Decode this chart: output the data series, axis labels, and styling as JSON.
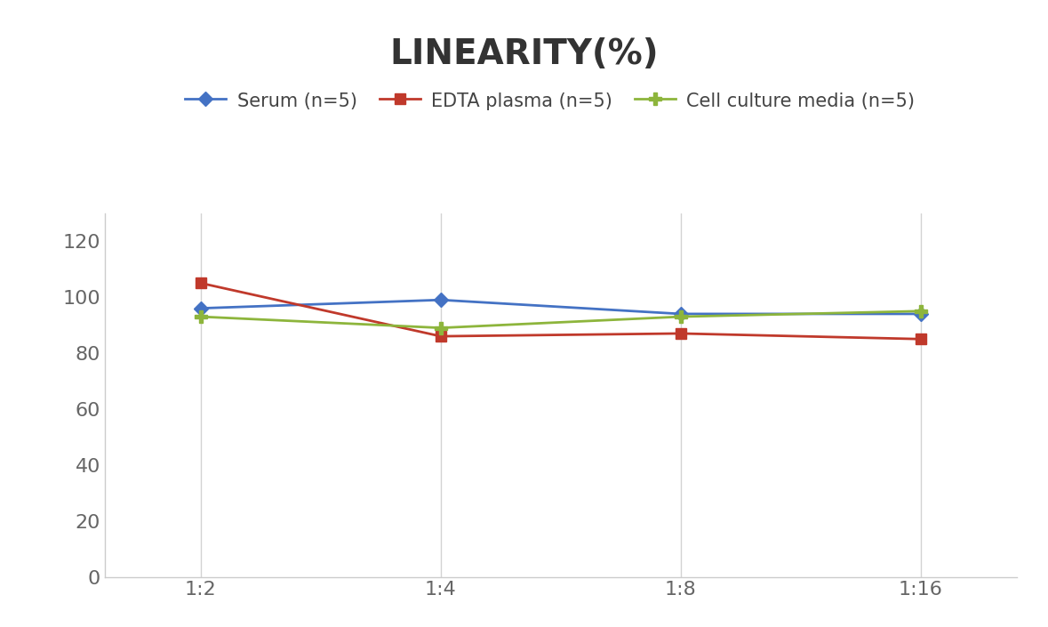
{
  "title": "LINEARITY(%)",
  "title_fontsize": 28,
  "title_fontweight": "bold",
  "x_labels": [
    "1:2",
    "1:4",
    "1:8",
    "1:16"
  ],
  "series": [
    {
      "label": "Serum (n=5)",
      "values": [
        96,
        99,
        94,
        94
      ],
      "color": "#4472C4",
      "marker": "D",
      "marker_size": 8,
      "linewidth": 2
    },
    {
      "label": "EDTA plasma (n=5)",
      "values": [
        105,
        86,
        87,
        85
      ],
      "color": "#C0392B",
      "marker": "s",
      "marker_size": 8,
      "linewidth": 2
    },
    {
      "label": "Cell culture media (n=5)",
      "values": [
        93,
        89,
        93,
        95
      ],
      "color": "#8DB53C",
      "marker": "P",
      "marker_size": 10,
      "linewidth": 2
    }
  ],
  "ylim": [
    0,
    130
  ],
  "yticks": [
    0,
    20,
    40,
    60,
    80,
    100,
    120
  ],
  "background_color": "#FFFFFF",
  "grid_color": "#D3D3D3",
  "legend_fontsize": 15,
  "tick_fontsize": 16,
  "tick_color": "#666666"
}
